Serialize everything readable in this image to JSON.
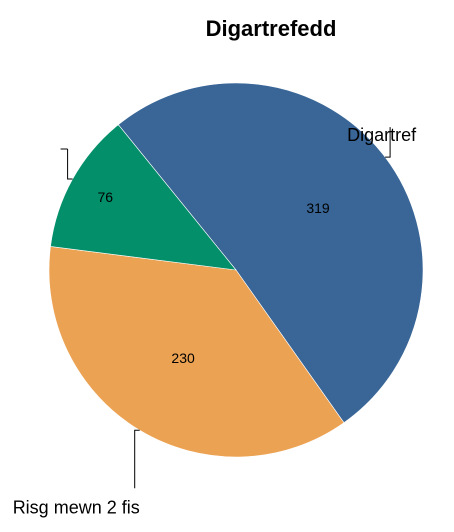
{
  "chart_data": {
    "type": "pie",
    "title": "Digartrefedd",
    "slices": [
      {
        "label": "Digartref",
        "value": 319,
        "color": "#396697"
      },
      {
        "label": "Risg mewn 2 fis",
        "value": 230,
        "color": "#eca253"
      },
      {
        "label": "",
        "value": 76,
        "color": "#028f6a"
      }
    ],
    "legend": "none"
  }
}
